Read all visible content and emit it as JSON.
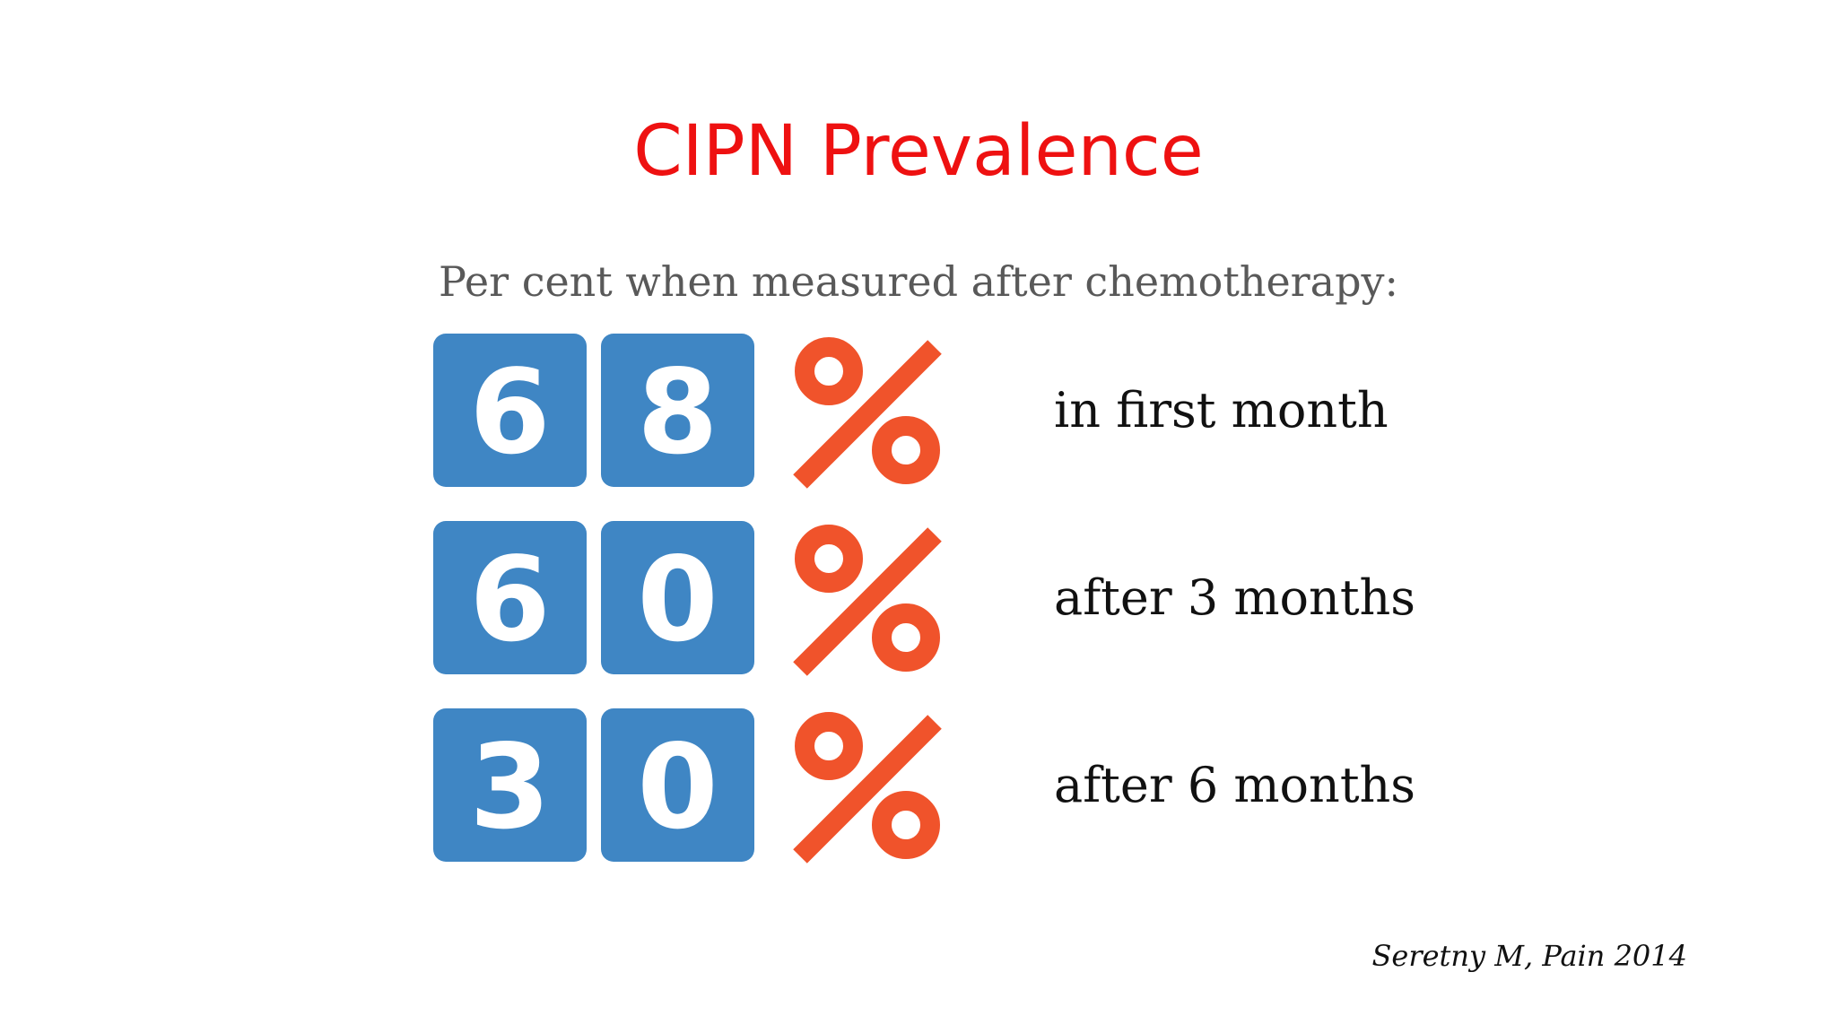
{
  "slide": {
    "title": "CIPN Prevalence",
    "subtitle": "Per cent when measured after chemotherapy:",
    "rows": [
      {
        "digits": [
          "6",
          "8"
        ],
        "label": "in first month"
      },
      {
        "digits": [
          "6",
          "0"
        ],
        "label": "after 3 months"
      },
      {
        "digits": [
          "3",
          "0"
        ],
        "label": "after 6 months"
      }
    ],
    "citation": "Seretny M, Pain 2014"
  }
}
